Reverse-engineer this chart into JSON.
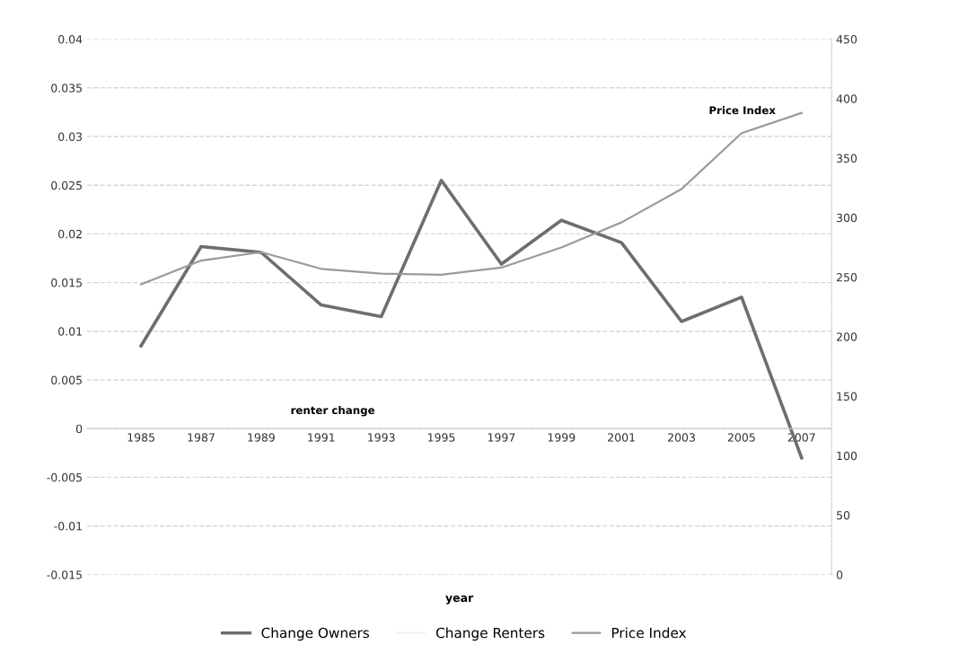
{
  "chart_data": {
    "type": "line",
    "xlabel": "year",
    "categories": [
      "1985",
      "1987",
      "1989",
      "1991",
      "1993",
      "1995",
      "1997",
      "1999",
      "2001",
      "2003",
      "2005",
      "2007"
    ],
    "series": [
      {
        "name": "Change Owners",
        "color": "#6e6e6e",
        "values": [
          0.0085,
          0.0187,
          0.0181,
          0.0127,
          0.0115,
          0.0255,
          0.0169,
          0.0214,
          0.0191,
          0.011,
          0.0135,
          -0.003
        ]
      },
      {
        "name": "Change Renters",
        "color": "#f2f2f2",
        "values": [
          null,
          null,
          null,
          null,
          null,
          null,
          null,
          null,
          null,
          null,
          null,
          null
        ]
      },
      {
        "name": "Price Index",
        "color": "#9a9a9a",
        "axis": "y2",
        "values": [
          244,
          264,
          271,
          257,
          253,
          252,
          258,
          275,
          296,
          324,
          371,
          388
        ]
      }
    ],
    "ylim": [
      -0.015,
      0.04
    ],
    "yticks": [
      -0.015,
      -0.01,
      -0.005,
      0,
      0.005,
      0.01,
      0.015,
      0.02,
      0.025,
      0.03,
      0.035,
      0.04
    ],
    "y2lim": [
      0,
      450
    ],
    "y2ticks": [
      0,
      50,
      100,
      150,
      200,
      250,
      300,
      350,
      400,
      450
    ],
    "annotations": [
      "Price Index",
      "renter change"
    ],
    "grid": "y",
    "legend": "bottom",
    "marker": "none",
    "line_style": "solid"
  }
}
